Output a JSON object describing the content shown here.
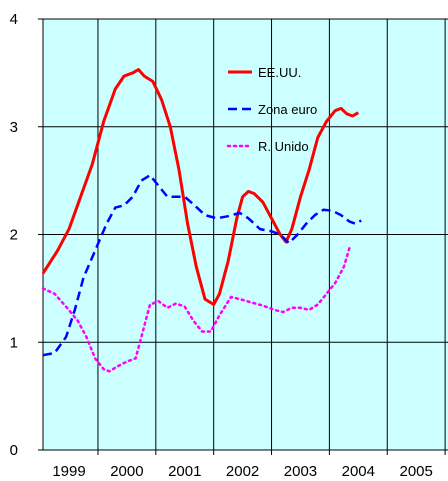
{
  "chart_data": {
    "type": "line",
    "title": "",
    "xlabel": "",
    "ylabel": "",
    "xlim": [
      1998.55,
      2005.55
    ],
    "ylim": [
      0,
      4
    ],
    "x_ticks": [
      1999,
      2000,
      2001,
      2002,
      2003,
      2004,
      2005
    ],
    "x_tick_labels": [
      "1999",
      "2000",
      "2001",
      "2002",
      "2003",
      "2004",
      "2005"
    ],
    "y_ticks": [
      0,
      1,
      2,
      3,
      4
    ],
    "y_tick_labels": [
      "0",
      "1",
      "2",
      "3",
      "4"
    ],
    "grid": true,
    "plot_background": "#ccffff",
    "legend_position": "top-right",
    "series": [
      {
        "name": "EE.UU.",
        "color": "#ff0000",
        "style": "solid",
        "points": [
          [
            1998.55,
            1.64
          ],
          [
            1998.8,
            1.85
          ],
          [
            1999.0,
            2.05
          ],
          [
            1999.2,
            2.35
          ],
          [
            1999.4,
            2.65
          ],
          [
            1999.6,
            3.05
          ],
          [
            1999.8,
            3.35
          ],
          [
            1999.95,
            3.47
          ],
          [
            2000.1,
            3.5
          ],
          [
            2000.2,
            3.53
          ],
          [
            2000.3,
            3.47
          ],
          [
            2000.45,
            3.42
          ],
          [
            2000.6,
            3.25
          ],
          [
            2000.75,
            3.0
          ],
          [
            2000.9,
            2.6
          ],
          [
            2001.05,
            2.1
          ],
          [
            2001.2,
            1.7
          ],
          [
            2001.35,
            1.4
          ],
          [
            2001.5,
            1.35
          ],
          [
            2001.6,
            1.45
          ],
          [
            2001.75,
            1.75
          ],
          [
            2001.9,
            2.15
          ],
          [
            2002.0,
            2.35
          ],
          [
            2002.1,
            2.4
          ],
          [
            2002.2,
            2.38
          ],
          [
            2002.35,
            2.3
          ],
          [
            2002.5,
            2.15
          ],
          [
            2002.65,
            2.0
          ],
          [
            2002.75,
            1.93
          ],
          [
            2002.85,
            2.05
          ],
          [
            2003.0,
            2.35
          ],
          [
            2003.15,
            2.6
          ],
          [
            2003.3,
            2.9
          ],
          [
            2003.45,
            3.05
          ],
          [
            2003.6,
            3.15
          ],
          [
            2003.7,
            3.17
          ],
          [
            2003.8,
            3.12
          ],
          [
            2003.9,
            3.1
          ],
          [
            2004.0,
            3.13
          ]
        ]
      },
      {
        "name": "Zona euro",
        "color": "#0000ff",
        "style": "dashed",
        "points": [
          [
            1998.55,
            0.88
          ],
          [
            1998.75,
            0.9
          ],
          [
            1998.95,
            1.05
          ],
          [
            1999.1,
            1.3
          ],
          [
            1999.25,
            1.6
          ],
          [
            1999.45,
            1.85
          ],
          [
            1999.65,
            2.1
          ],
          [
            1999.8,
            2.25
          ],
          [
            1999.95,
            2.27
          ],
          [
            2000.1,
            2.35
          ],
          [
            2000.25,
            2.5
          ],
          [
            2000.4,
            2.55
          ],
          [
            2000.55,
            2.45
          ],
          [
            2000.7,
            2.35
          ],
          [
            2000.85,
            2.35
          ],
          [
            2001.0,
            2.35
          ],
          [
            2001.15,
            2.28
          ],
          [
            2001.35,
            2.18
          ],
          [
            2001.55,
            2.15
          ],
          [
            2001.75,
            2.17
          ],
          [
            2001.95,
            2.2
          ],
          [
            2002.1,
            2.15
          ],
          [
            2002.3,
            2.05
          ],
          [
            2002.5,
            2.03
          ],
          [
            2002.65,
            2.0
          ],
          [
            2002.8,
            1.92
          ],
          [
            2002.95,
            2.0
          ],
          [
            2003.1,
            2.1
          ],
          [
            2003.25,
            2.18
          ],
          [
            2003.4,
            2.23
          ],
          [
            2003.55,
            2.22
          ],
          [
            2003.7,
            2.18
          ],
          [
            2003.85,
            2.12
          ],
          [
            2003.95,
            2.1
          ],
          [
            2004.05,
            2.13
          ]
        ]
      },
      {
        "name": "R. Unido",
        "color": "#ff00ff",
        "style": "dotted",
        "points": [
          [
            1998.55,
            1.5
          ],
          [
            1998.75,
            1.45
          ],
          [
            1998.95,
            1.33
          ],
          [
            1999.15,
            1.2
          ],
          [
            1999.3,
            1.05
          ],
          [
            1999.45,
            0.85
          ],
          [
            1999.6,
            0.75
          ],
          [
            1999.7,
            0.73
          ],
          [
            1999.85,
            0.78
          ],
          [
            2000.0,
            0.82
          ],
          [
            2000.15,
            0.85
          ],
          [
            2000.25,
            1.05
          ],
          [
            2000.4,
            1.35
          ],
          [
            2000.55,
            1.38
          ],
          [
            2000.7,
            1.32
          ],
          [
            2000.85,
            1.36
          ],
          [
            2001.0,
            1.33
          ],
          [
            2001.15,
            1.2
          ],
          [
            2001.3,
            1.1
          ],
          [
            2001.45,
            1.1
          ],
          [
            2001.6,
            1.25
          ],
          [
            2001.8,
            1.42
          ],
          [
            2001.95,
            1.4
          ],
          [
            2002.15,
            1.37
          ],
          [
            2002.35,
            1.34
          ],
          [
            2002.55,
            1.3
          ],
          [
            2002.7,
            1.28
          ],
          [
            2002.85,
            1.32
          ],
          [
            2003.0,
            1.32
          ],
          [
            2003.15,
            1.3
          ],
          [
            2003.3,
            1.35
          ],
          [
            2003.45,
            1.45
          ],
          [
            2003.6,
            1.55
          ],
          [
            2003.75,
            1.7
          ],
          [
            2003.85,
            1.88
          ]
        ]
      }
    ]
  }
}
